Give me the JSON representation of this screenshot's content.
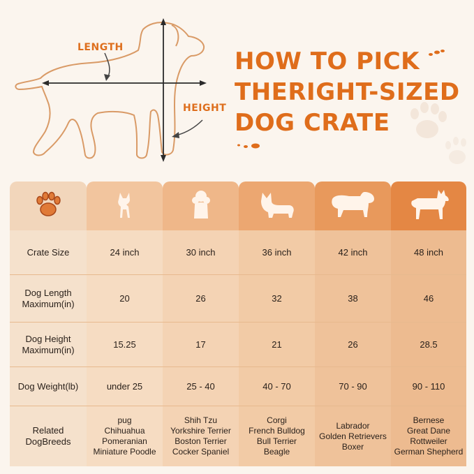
{
  "title": {
    "line1": "HOW TO PICK",
    "line2": "THERIGHT-SIZED",
    "line3": "DOG CRATE"
  },
  "diagram": {
    "length_label": "LENGTH",
    "height_label": "HEIGHT"
  },
  "colors": {
    "accent": "#df6d1b",
    "outline": "#d99a66",
    "header_gradient": [
      "#f2d6bb",
      "#f2c59e",
      "#efb789",
      "#eca771",
      "#e8995c",
      "#e48744"
    ]
  },
  "table": {
    "header_icons": [
      "paw-icon",
      "chihuahua-icon",
      "poodle-icon",
      "corgi-icon",
      "retriever-icon",
      "shepherd-icon"
    ],
    "rows": [
      {
        "label": "Crate Size",
        "values": [
          "24 inch",
          "30 inch",
          "36 inch",
          "42 inch",
          "48 inch"
        ]
      },
      {
        "label": "Dog Length\nMaximum(in)",
        "values": [
          "20",
          "26",
          "32",
          "38",
          "46"
        ]
      },
      {
        "label": "Dog Height\nMaximum(in)",
        "values": [
          "15.25",
          "17",
          "21",
          "26",
          "28.5"
        ]
      },
      {
        "label": "Dog Weight(lb)",
        "values": [
          "under 25",
          "25 - 40",
          "40 - 70",
          "70 - 90",
          "90 - 110"
        ]
      }
    ],
    "breeds_label": "Related\nDogBreeds",
    "breeds": [
      [
        "pug",
        "Chihuahua",
        "Pomeranian",
        "Miniature Poodle"
      ],
      [
        "Shih Tzu",
        "Yorkshire Terrier",
        "Boston Terrier",
        "Cocker Spaniel"
      ],
      [
        "Corgi",
        "French Bulldog",
        "Bull Terrier",
        "Beagle"
      ],
      [
        "Labrador",
        "Golden Retrievers",
        "Boxer"
      ],
      [
        "Bernese",
        "Great Dane",
        "Rottweiler",
        "German Shepherd"
      ]
    ]
  }
}
